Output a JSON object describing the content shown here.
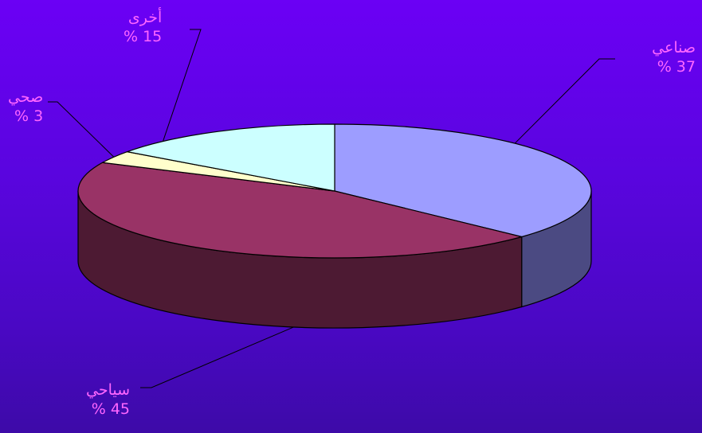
{
  "chart_data": {
    "type": "pie",
    "style": "3d-exploded-perspective",
    "slices": [
      {
        "name": "صناعي",
        "value": 37,
        "value_label": "% 37",
        "color_top": "#9d9dff",
        "color_side": "#4b4a82"
      },
      {
        "name": "سياحي",
        "value": 45,
        "value_label": "% 45",
        "color_top": "#993366",
        "color_side": "#4d1a33"
      },
      {
        "name": "صحي",
        "value": 3,
        "value_label": "% 3",
        "color_top": "#ffffcc",
        "color_side": "#808066"
      },
      {
        "name": "أخرى",
        "value": 15,
        "value_label": "% 15",
        "color_top": "#ccffff",
        "color_side": "#668080"
      }
    ],
    "start_angle_deg": 90,
    "direction": "clockwise",
    "legend": "none",
    "data_labels": "outside-with-leader-lines"
  },
  "colors": {
    "background_top": "#6b00f5",
    "background_bottom": "#3d0aa8",
    "label_text": "#ff66ff",
    "outline": "#000000"
  }
}
